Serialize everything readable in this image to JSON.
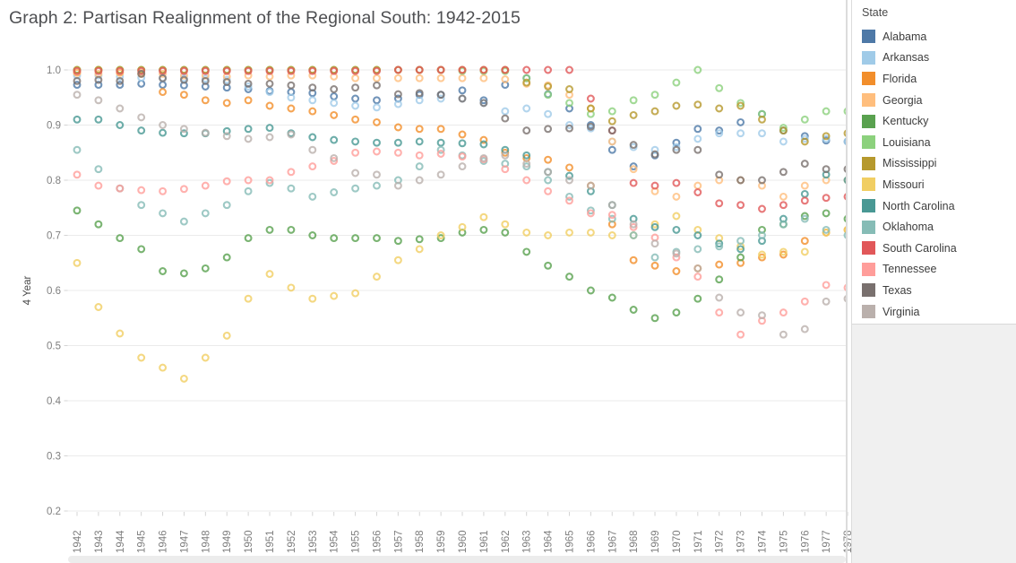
{
  "title": "Graph 2: Partisan Realignment of the Regional South: 1942-2015",
  "legend": {
    "title": "State"
  },
  "chart_data": {
    "type": "scatter",
    "marker": "open-circle",
    "title": "Graph 2: Partisan Realignment of the Regional South: 1942-2015",
    "xlabel": "",
    "ylabel": "4 Year",
    "ylim": [
      0.2,
      1.0
    ],
    "yticks": [
      1.0,
      0.9,
      0.8,
      0.7,
      0.6,
      0.5,
      0.4,
      0.3,
      0.2
    ],
    "grid": "horizontal",
    "legend_position": "right",
    "x": [
      1942,
      1943,
      1944,
      1945,
      1946,
      1947,
      1948,
      1949,
      1950,
      1951,
      1952,
      1953,
      1954,
      1955,
      1956,
      1957,
      1958,
      1959,
      1960,
      1961,
      1962,
      1963,
      1964,
      1965,
      1966,
      1967,
      1968,
      1969,
      1970,
      1971,
      1972,
      1973,
      1974,
      1975,
      1976,
      1977,
      1978
    ],
    "series": [
      {
        "name": "Alabama",
        "color": "#4E79A7",
        "values": [
          0.973,
          0.973,
          0.973,
          0.975,
          0.973,
          0.972,
          0.97,
          0.968,
          0.965,
          0.962,
          0.96,
          0.958,
          0.952,
          0.948,
          0.945,
          0.948,
          0.955,
          0.955,
          0.963,
          0.945,
          0.973,
          0.985,
          0.956,
          0.93,
          0.9,
          0.855,
          0.825,
          0.845,
          0.868,
          0.893,
          0.89,
          0.905,
          0.92,
          0.89,
          0.88,
          0.872,
          0.87
        ]
      },
      {
        "name": "Arkansas",
        "color": "#A0CBE8",
        "values": [
          0.99,
          0.99,
          0.988,
          0.986,
          0.985,
          0.985,
          0.984,
          0.982,
          0.97,
          0.96,
          0.95,
          0.945,
          0.94,
          0.935,
          0.932,
          0.938,
          0.945,
          0.948,
          0.948,
          0.94,
          0.925,
          0.93,
          0.92,
          0.9,
          0.894,
          0.87,
          0.86,
          0.855,
          0.86,
          0.875,
          0.885,
          0.885,
          0.885,
          0.87,
          0.875,
          0.875,
          0.87
        ]
      },
      {
        "name": "Florida",
        "color": "#F28E2B",
        "values": [
          0.995,
          1.0,
          0.995,
          0.993,
          0.96,
          0.955,
          0.945,
          0.94,
          0.945,
          0.935,
          0.93,
          0.925,
          0.918,
          0.91,
          0.905,
          0.896,
          0.893,
          0.893,
          0.883,
          0.873,
          0.85,
          0.84,
          0.837,
          0.823,
          0.79,
          0.72,
          0.655,
          0.645,
          0.635,
          0.64,
          0.647,
          0.65,
          0.66,
          0.665,
          0.69,
          0.705,
          0.71
        ]
      },
      {
        "name": "Georgia",
        "color": "#FFBE7D",
        "values": [
          0.995,
          0.993,
          0.995,
          0.995,
          0.993,
          0.99,
          0.99,
          0.988,
          0.99,
          0.988,
          0.99,
          0.99,
          0.988,
          0.985,
          0.985,
          0.985,
          0.985,
          0.985,
          0.985,
          0.985,
          0.983,
          0.975,
          0.972,
          0.955,
          0.93,
          0.87,
          0.82,
          0.78,
          0.77,
          0.79,
          0.8,
          0.8,
          0.79,
          0.77,
          0.79,
          0.8,
          0.8
        ]
      },
      {
        "name": "Kentucky",
        "color": "#59A14F",
        "values": [
          0.745,
          0.72,
          0.695,
          0.675,
          0.635,
          0.631,
          0.64,
          0.66,
          0.695,
          0.71,
          0.71,
          0.7,
          0.695,
          0.695,
          0.695,
          0.69,
          0.693,
          0.695,
          0.705,
          0.71,
          0.705,
          0.67,
          0.645,
          0.625,
          0.6,
          0.587,
          0.565,
          0.55,
          0.56,
          0.585,
          0.62,
          0.66,
          0.71,
          0.72,
          0.735,
          0.74,
          0.73
        ]
      },
      {
        "name": "Louisiana",
        "color": "#8CD17D",
        "values": [
          1.0,
          1.0,
          1.0,
          1.0,
          1.0,
          1.0,
          1.0,
          1.0,
          1.0,
          1.0,
          1.0,
          1.0,
          1.0,
          1.0,
          1.0,
          1.0,
          1.0,
          1.0,
          0.998,
          0.998,
          0.998,
          0.985,
          0.955,
          0.94,
          0.92,
          0.925,
          0.945,
          0.955,
          0.977,
          1.0,
          0.967,
          0.94,
          0.92,
          0.895,
          0.91,
          0.925,
          0.925
        ]
      },
      {
        "name": "Mississippi",
        "color": "#B6992D",
        "values": [
          1.0,
          1.0,
          1.0,
          1.0,
          1.0,
          1.0,
          1.0,
          1.0,
          1.0,
          1.0,
          1.0,
          1.0,
          1.0,
          1.0,
          1.0,
          1.0,
          1.0,
          1.0,
          1.0,
          1.0,
          1.0,
          0.977,
          0.97,
          0.965,
          0.93,
          0.907,
          0.918,
          0.925,
          0.935,
          0.937,
          0.93,
          0.935,
          0.91,
          0.89,
          0.87,
          0.88,
          0.885
        ]
      },
      {
        "name": "Missouri",
        "color": "#F1CE63",
        "values": [
          0.65,
          0.57,
          0.522,
          0.478,
          0.46,
          0.44,
          0.478,
          0.518,
          0.585,
          0.63,
          0.605,
          0.585,
          0.59,
          0.595,
          0.625,
          0.655,
          0.675,
          0.7,
          0.715,
          0.733,
          0.72,
          0.705,
          0.7,
          0.705,
          0.705,
          0.7,
          0.7,
          0.72,
          0.735,
          0.71,
          0.695,
          0.68,
          0.665,
          0.67,
          0.67,
          0.705,
          0.71
        ]
      },
      {
        "name": "North Carolina",
        "color": "#499894",
        "values": [
          0.91,
          0.91,
          0.9,
          0.89,
          0.886,
          0.885,
          0.885,
          0.889,
          0.893,
          0.895,
          0.885,
          0.878,
          0.873,
          0.87,
          0.868,
          0.868,
          0.87,
          0.868,
          0.867,
          0.865,
          0.855,
          0.845,
          0.815,
          0.808,
          0.78,
          0.755,
          0.73,
          0.715,
          0.71,
          0.7,
          0.685,
          0.675,
          0.69,
          0.73,
          0.775,
          0.81,
          0.8
        ]
      },
      {
        "name": "Oklahoma",
        "color": "#86BCB6",
        "values": [
          0.855,
          0.82,
          0.785,
          0.755,
          0.74,
          0.725,
          0.74,
          0.755,
          0.78,
          0.795,
          0.785,
          0.77,
          0.778,
          0.785,
          0.79,
          0.8,
          0.825,
          0.855,
          0.845,
          0.835,
          0.83,
          0.825,
          0.8,
          0.77,
          0.745,
          0.73,
          0.7,
          0.66,
          0.67,
          0.675,
          0.68,
          0.69,
          0.7,
          0.72,
          0.73,
          0.71,
          0.7
        ]
      },
      {
        "name": "South Carolina",
        "color": "#E15759",
        "values": [
          0.998,
          0.998,
          0.998,
          0.998,
          0.998,
          0.998,
          0.998,
          0.998,
          0.998,
          0.998,
          0.998,
          0.998,
          0.998,
          0.998,
          0.998,
          1.0,
          1.0,
          1.0,
          1.0,
          1.0,
          1.0,
          1.0,
          1.0,
          1.0,
          0.948,
          0.89,
          0.795,
          0.79,
          0.795,
          0.778,
          0.758,
          0.755,
          0.748,
          0.755,
          0.763,
          0.768,
          0.77
        ]
      },
      {
        "name": "Tennessee",
        "color": "#FF9D9A",
        "values": [
          0.81,
          0.79,
          0.785,
          0.782,
          0.78,
          0.784,
          0.79,
          0.798,
          0.8,
          0.8,
          0.815,
          0.825,
          0.835,
          0.85,
          0.852,
          0.85,
          0.845,
          0.848,
          0.843,
          0.838,
          0.82,
          0.8,
          0.78,
          0.763,
          0.74,
          0.737,
          0.715,
          0.696,
          0.66,
          0.625,
          0.56,
          0.52,
          0.545,
          0.56,
          0.58,
          0.61,
          0.605
        ]
      },
      {
        "name": "Texas",
        "color": "#79706E",
        "values": [
          0.98,
          0.982,
          0.98,
          0.993,
          0.985,
          0.982,
          0.98,
          0.978,
          0.975,
          0.975,
          0.972,
          0.968,
          0.965,
          0.968,
          0.972,
          0.956,
          0.958,
          0.955,
          0.948,
          0.94,
          0.912,
          0.89,
          0.893,
          0.894,
          0.897,
          0.89,
          0.864,
          0.847,
          0.855,
          0.855,
          0.81,
          0.8,
          0.8,
          0.815,
          0.83,
          0.82,
          0.82
        ]
      },
      {
        "name": "Virginia",
        "color": "#BAB0AC",
        "values": [
          0.955,
          0.945,
          0.93,
          0.914,
          0.9,
          0.893,
          0.886,
          0.88,
          0.875,
          0.878,
          0.883,
          0.855,
          0.84,
          0.813,
          0.81,
          0.79,
          0.8,
          0.81,
          0.825,
          0.84,
          0.845,
          0.83,
          0.815,
          0.8,
          0.79,
          0.755,
          0.72,
          0.685,
          0.667,
          0.64,
          0.587,
          0.56,
          0.555,
          0.52,
          0.53,
          0.58,
          0.585
        ]
      }
    ]
  }
}
